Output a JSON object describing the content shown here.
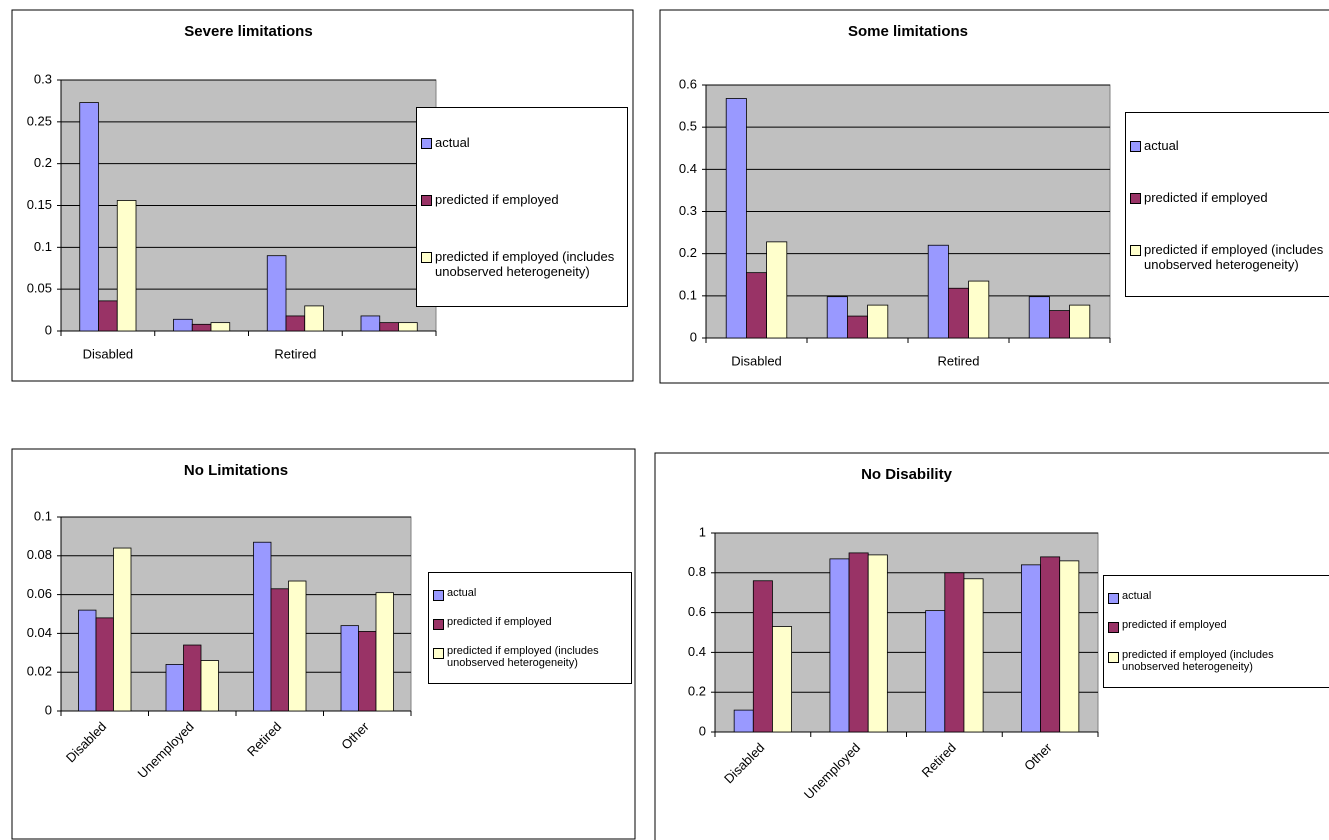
{
  "chart_data": [
    {
      "type": "bar",
      "title": "Severe limitations",
      "categories": [
        "Disabled",
        null,
        "Retired",
        null
      ],
      "ylim": [
        0,
        0.3
      ],
      "yticks": [
        0,
        0.05,
        0.1,
        0.15,
        0.2,
        0.25,
        0.3
      ],
      "grid": true,
      "legend": "right",
      "series": [
        {
          "name": "actual",
          "color": "#9999ff",
          "values": [
            0.273,
            0.014,
            0.09,
            0.018
          ]
        },
        {
          "name": "predicted if employed",
          "color": "#993366",
          "values": [
            0.036,
            0.008,
            0.018,
            0.01
          ]
        },
        {
          "name": "predicted if employed (includes unobserved heterogeneity)",
          "color": "#ffffcc",
          "values": [
            0.156,
            0.01,
            0.03,
            0.01
          ]
        }
      ]
    },
    {
      "type": "bar",
      "title": "Some limitations",
      "categories": [
        "Disabled",
        null,
        "Retired",
        null
      ],
      "ylim": [
        0,
        0.6
      ],
      "yticks": [
        0,
        0.1,
        0.2,
        0.3,
        0.4,
        0.5,
        0.6
      ],
      "grid": true,
      "legend": "right",
      "series": [
        {
          "name": "actual",
          "color": "#9999ff",
          "values": [
            0.568,
            0.098,
            0.22,
            0.098
          ]
        },
        {
          "name": "predicted if employed",
          "color": "#993366",
          "values": [
            0.155,
            0.052,
            0.118,
            0.065
          ]
        },
        {
          "name": "predicted if employed (includes unobserved heterogeneity)",
          "color": "#ffffcc",
          "values": [
            0.228,
            0.078,
            0.135,
            0.078
          ]
        }
      ]
    },
    {
      "type": "bar",
      "title": "No Limitations",
      "categories": [
        "Disabled",
        "Unemployed",
        "Retired",
        "Other"
      ],
      "ylim": [
        0,
        0.1
      ],
      "yticks": [
        0,
        0.02,
        0.04,
        0.06,
        0.08,
        0.1
      ],
      "grid": true,
      "legend": "right",
      "series": [
        {
          "name": "actual",
          "color": "#9999ff",
          "values": [
            0.052,
            0.024,
            0.087,
            0.044
          ]
        },
        {
          "name": "predicted if employed",
          "color": "#993366",
          "values": [
            0.048,
            0.034,
            0.063,
            0.041
          ]
        },
        {
          "name": "predicted if employed (includes unobserved heterogeneity)",
          "color": "#ffffcc",
          "values": [
            0.084,
            0.026,
            0.067,
            0.061
          ]
        }
      ]
    },
    {
      "type": "bar",
      "title": "No Disability",
      "categories": [
        "Disabled",
        "Unemployed",
        "Retired",
        "Other"
      ],
      "ylim": [
        0,
        1
      ],
      "yticks": [
        0,
        0.2,
        0.4,
        0.6,
        0.8,
        1
      ],
      "grid": true,
      "legend": "right",
      "series": [
        {
          "name": "actual",
          "color": "#9999ff",
          "values": [
            0.11,
            0.87,
            0.61,
            0.84
          ]
        },
        {
          "name": "predicted if employed",
          "color": "#993366",
          "values": [
            0.76,
            0.9,
            0.8,
            0.88
          ]
        },
        {
          "name": "predicted if employed (includes unobserved heterogeneity)",
          "color": "#ffffcc",
          "values": [
            0.53,
            0.89,
            0.77,
            0.86
          ]
        }
      ]
    }
  ]
}
